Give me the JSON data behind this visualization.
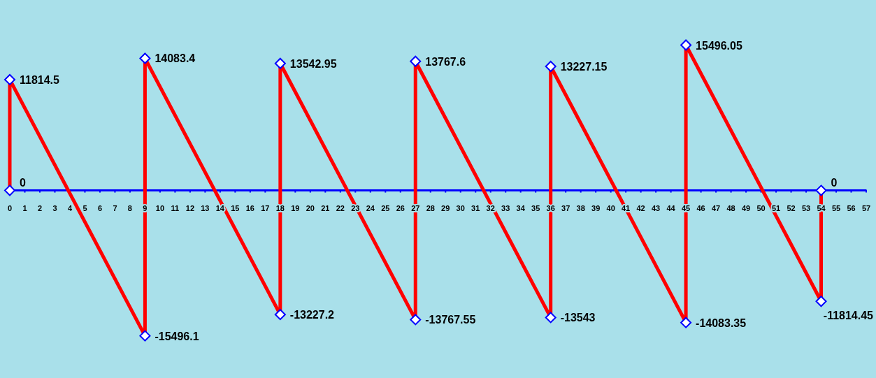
{
  "chart_data": {
    "type": "line",
    "x": [
      0,
      0,
      9,
      9,
      18,
      18,
      27,
      27,
      36,
      36,
      45,
      45,
      54,
      54
    ],
    "series": [
      {
        "color": "#ff0000",
        "values": [
          0,
          11814.5,
          -15496.1,
          14083.4,
          -13227.2,
          13542.95,
          -13767.55,
          13767.6,
          -13543,
          13227.15,
          -14083.35,
          15496.05,
          -11814.45,
          0
        ]
      }
    ],
    "xlim": [
      0,
      57
    ],
    "xticks": [
      0,
      1,
      2,
      3,
      4,
      5,
      6,
      7,
      8,
      9,
      10,
      11,
      12,
      13,
      14,
      15,
      16,
      17,
      18,
      19,
      20,
      21,
      22,
      23,
      24,
      25,
      26,
      27,
      28,
      29,
      30,
      31,
      32,
      33,
      34,
      35,
      36,
      37,
      38,
      39,
      40,
      41,
      42,
      43,
      44,
      45,
      46,
      47,
      48,
      49,
      50,
      51,
      52,
      53,
      54,
      55,
      56,
      57
    ],
    "tick_labels": "x",
    "grid": false,
    "marker": "diamond",
    "line_style": "solid",
    "data_labels": true
  }
}
